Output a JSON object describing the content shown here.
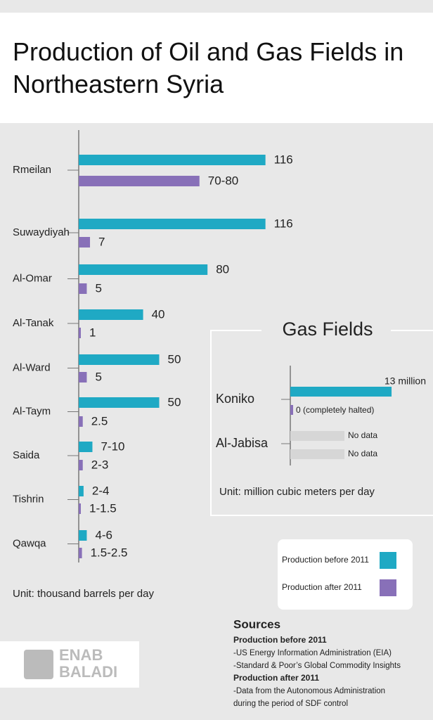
{
  "title": "Production of Oil and Gas Fields in Northeastern Syria",
  "chart_data": [
    {
      "type": "bar",
      "orientation": "horizontal",
      "categories": [
        "Rmeilan",
        "Suwaydiyah",
        "Al-Omar",
        "Al-Tanak",
        "Al-Ward",
        "Al-Taym",
        "Saida",
        "Tishrin",
        "Qawqa"
      ],
      "series": [
        {
          "name": "Production before 2011",
          "color": "#1fa9c4",
          "values": [
            116,
            116,
            80,
            40,
            50,
            50,
            8.5,
            3,
            5
          ],
          "value_labels": [
            "116",
            "116",
            "80",
            "40",
            "50",
            "50",
            "7-10",
            "2-4",
            "4-6"
          ]
        },
        {
          "name": "Production after 2011",
          "color": "#8870b8",
          "values": [
            75,
            7,
            5,
            1,
            5,
            2.5,
            2.5,
            1.25,
            2
          ],
          "value_labels": [
            "70-80",
            "7",
            "5",
            "1",
            "5",
            "2.5",
            "2-3",
            "1-1.5",
            "1.5-2.5"
          ]
        }
      ],
      "note": "Unit: thousand barrels per day"
    },
    {
      "type": "bar",
      "orientation": "horizontal",
      "title": "Gas Fields",
      "categories": [
        "Koniko",
        "Al-Jabisa"
      ],
      "series": [
        {
          "color": "#1fa9c4",
          "values": [
            13,
            null
          ],
          "value_labels": [
            "13 million",
            "No data"
          ]
        },
        {
          "color": "#8870b8",
          "values": [
            0,
            null
          ],
          "value_labels": [
            "0 (completely halted)",
            "No data"
          ]
        }
      ],
      "note": "Unit: million cubic meters per day"
    }
  ],
  "sources": {
    "title": "Sources",
    "items": [
      {
        "heading": "Production before 2011",
        "lines": [
          "-US Energy Information Administration (EIA)",
          "-Standard & Poor’s Global Commodity Insights"
        ]
      },
      {
        "heading": "Production after 2011",
        "lines": [
          "-Data from the Autonomous Administration",
          "during the period of SDF control"
        ]
      }
    ]
  },
  "logo": [
    "ENAB",
    "BALADI"
  ]
}
